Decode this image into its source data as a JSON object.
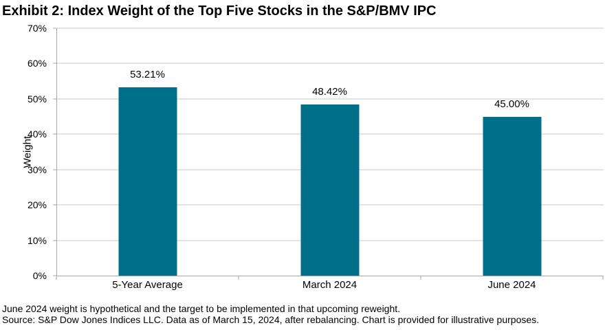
{
  "chart_data": {
    "type": "bar",
    "title": "Exhibit 2: Index Weight of the Top Five Stocks in the S&P/BMV IPC",
    "categories": [
      "5-Year Average",
      "March 2024",
      "June 2024"
    ],
    "values": [
      53.21,
      48.42,
      45.0
    ],
    "data_labels": [
      "53.21%",
      "48.42%",
      "45.00%"
    ],
    "xlabel": "",
    "ylabel": "Weight",
    "ylim": [
      0,
      70
    ],
    "yticks": [
      "0%",
      "10%",
      "20%",
      "30%",
      "40%",
      "50%",
      "60%",
      "70%"
    ],
    "ytick_values": [
      0,
      10,
      20,
      30,
      40,
      50,
      60,
      70
    ],
    "grid": "horizontal",
    "legend_position": "none",
    "bar_color": "#006F8A",
    "gridline_color": "#c9c9c9",
    "axis_color": "#a6a6a6",
    "text_color": "#000000"
  },
  "footnotes": [
    "June 2024 weight is hypothetical and the target to be implemented in that upcoming reweight.",
    "Source: S&P Dow Jones Indices LLC. Data as of March 15, 2024, after rebalancing. Chart is provided for illustrative purposes."
  ]
}
